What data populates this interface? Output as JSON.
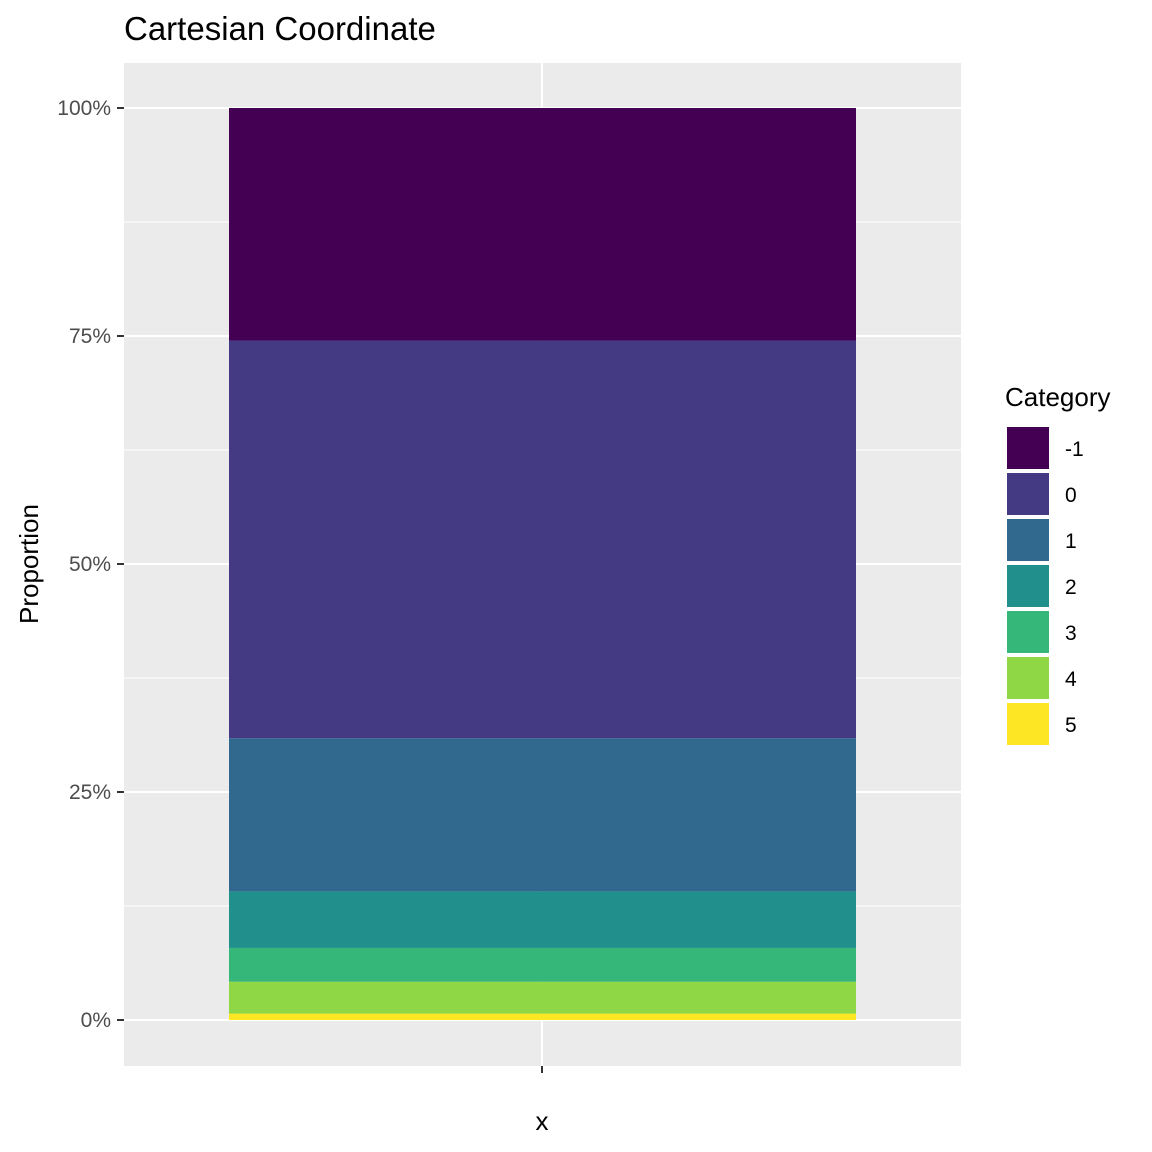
{
  "chart_data": {
    "type": "bar",
    "stacked": true,
    "normalized": true,
    "title": "Cartesian Coordinate",
    "xlabel": "x",
    "ylabel": "Proportion",
    "categories": [
      ""
    ],
    "ylim": [
      0,
      1
    ],
    "y_ticks": [
      "0%",
      "25%",
      "50%",
      "75%",
      "100%"
    ],
    "y_tick_values": [
      0,
      0.25,
      0.5,
      0.75,
      1
    ],
    "grid": true,
    "legend": {
      "title": "Category",
      "position": "right"
    },
    "series": [
      {
        "name": "-1",
        "values": [
          0.255
        ],
        "color": "#440154"
      },
      {
        "name": "0",
        "values": [
          0.436
        ],
        "color": "#443A83"
      },
      {
        "name": "1",
        "values": [
          0.168
        ],
        "color": "#31688E"
      },
      {
        "name": "2",
        "values": [
          0.062
        ],
        "color": "#21908C"
      },
      {
        "name": "3",
        "values": [
          0.037
        ],
        "color": "#35B779"
      },
      {
        "name": "4",
        "values": [
          0.035
        ],
        "color": "#8FD744"
      },
      {
        "name": "5",
        "values": [
          0.007
        ],
        "color": "#FDE725"
      }
    ]
  }
}
